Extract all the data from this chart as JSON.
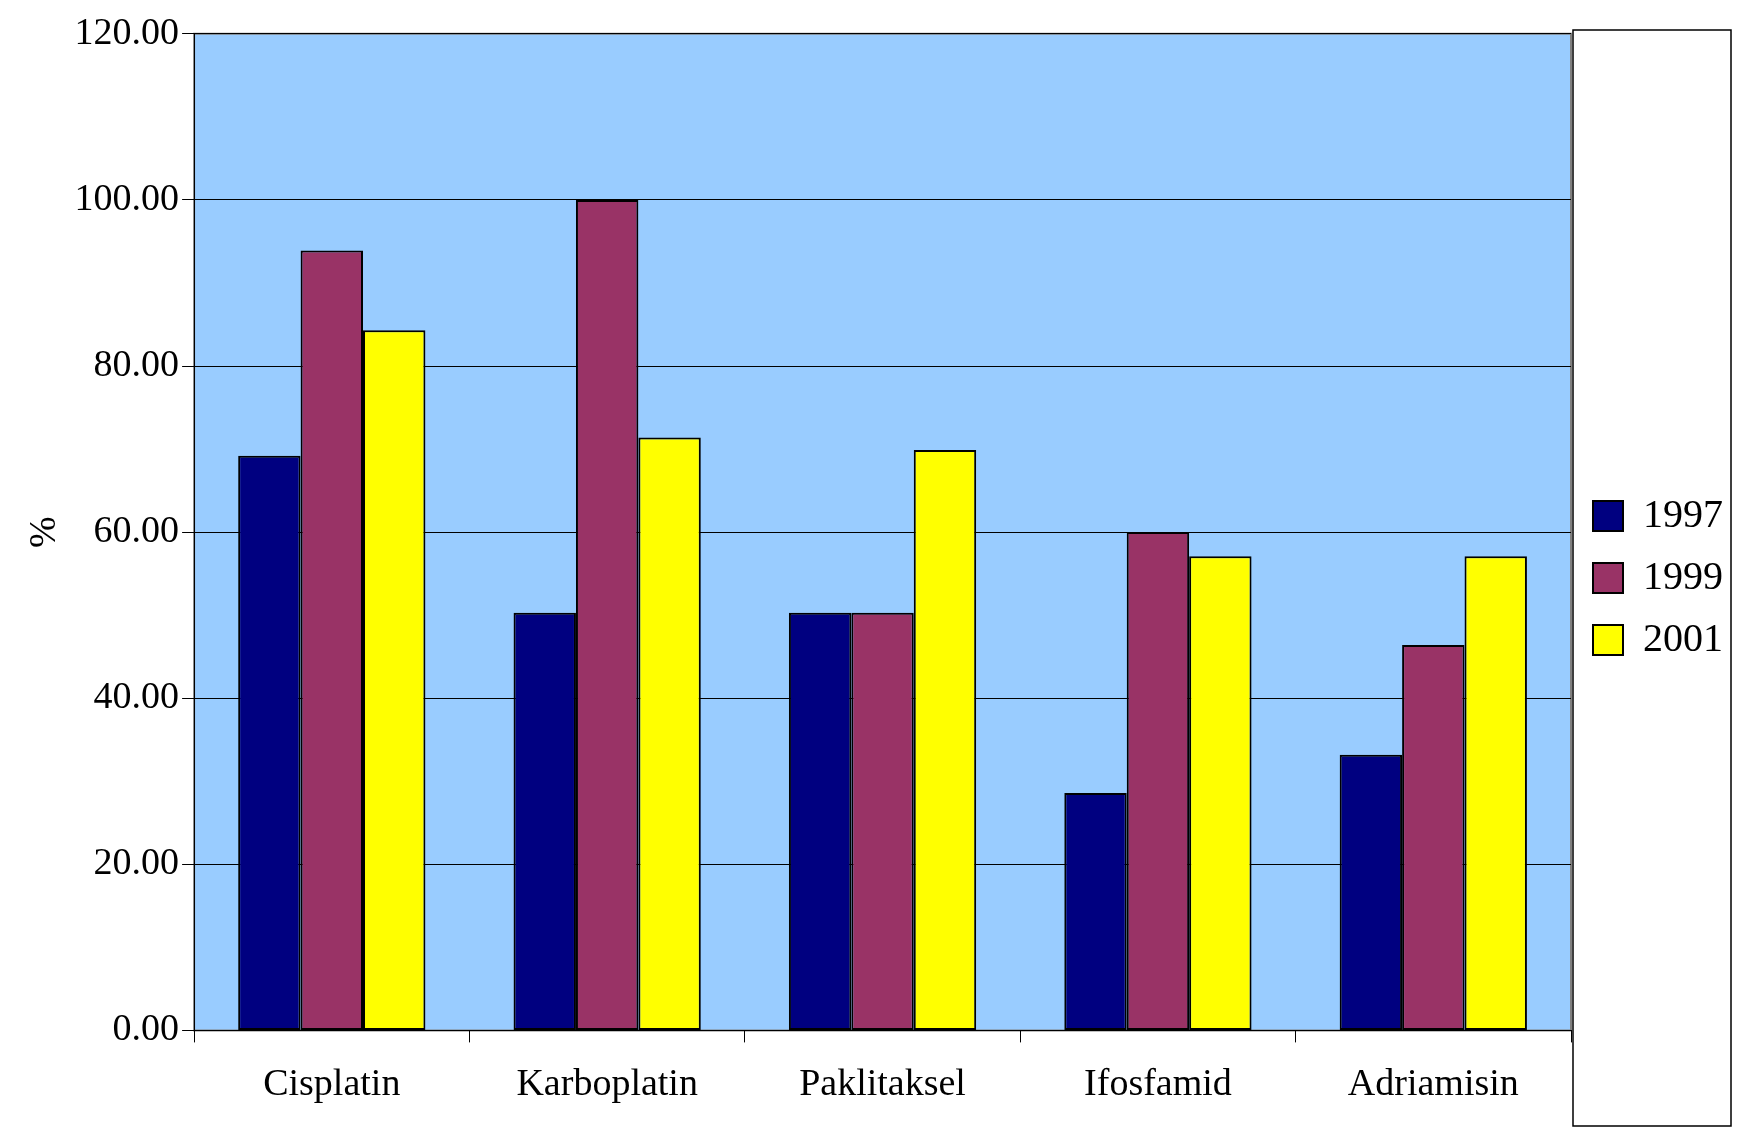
{
  "chart_data": {
    "type": "bar",
    "ylabel": "%",
    "categories": [
      "Cisplatin",
      "Karboplatin",
      "Paklitaksel",
      "Ifosfamid",
      "Adriamisin"
    ],
    "series": [
      {
        "name": "1997",
        "color": "#000080",
        "values": [
          69.2,
          50.3,
          50.3,
          28.6,
          33.2
        ]
      },
      {
        "name": "1999",
        "color": "#993366",
        "values": [
          93.9,
          100,
          50.3,
          60,
          46.4
        ]
      },
      {
        "name": "2001",
        "color": "#ffff00",
        "values": [
          84.3,
          71.4,
          69.9,
          57.1,
          57.1
        ]
      }
    ],
    "ylim": [
      0,
      120
    ],
    "yticks": [
      {
        "value": 0,
        "label": "0.00"
      },
      {
        "value": 20,
        "label": "20.00"
      },
      {
        "value": 40,
        "label": "40.00"
      },
      {
        "value": 60,
        "label": "60.00"
      },
      {
        "value": 80,
        "label": "80.00"
      },
      {
        "value": 100,
        "label": "100.00"
      },
      {
        "value": 120,
        "label": "120.00"
      }
    ],
    "grid": "y",
    "legend": "right"
  }
}
